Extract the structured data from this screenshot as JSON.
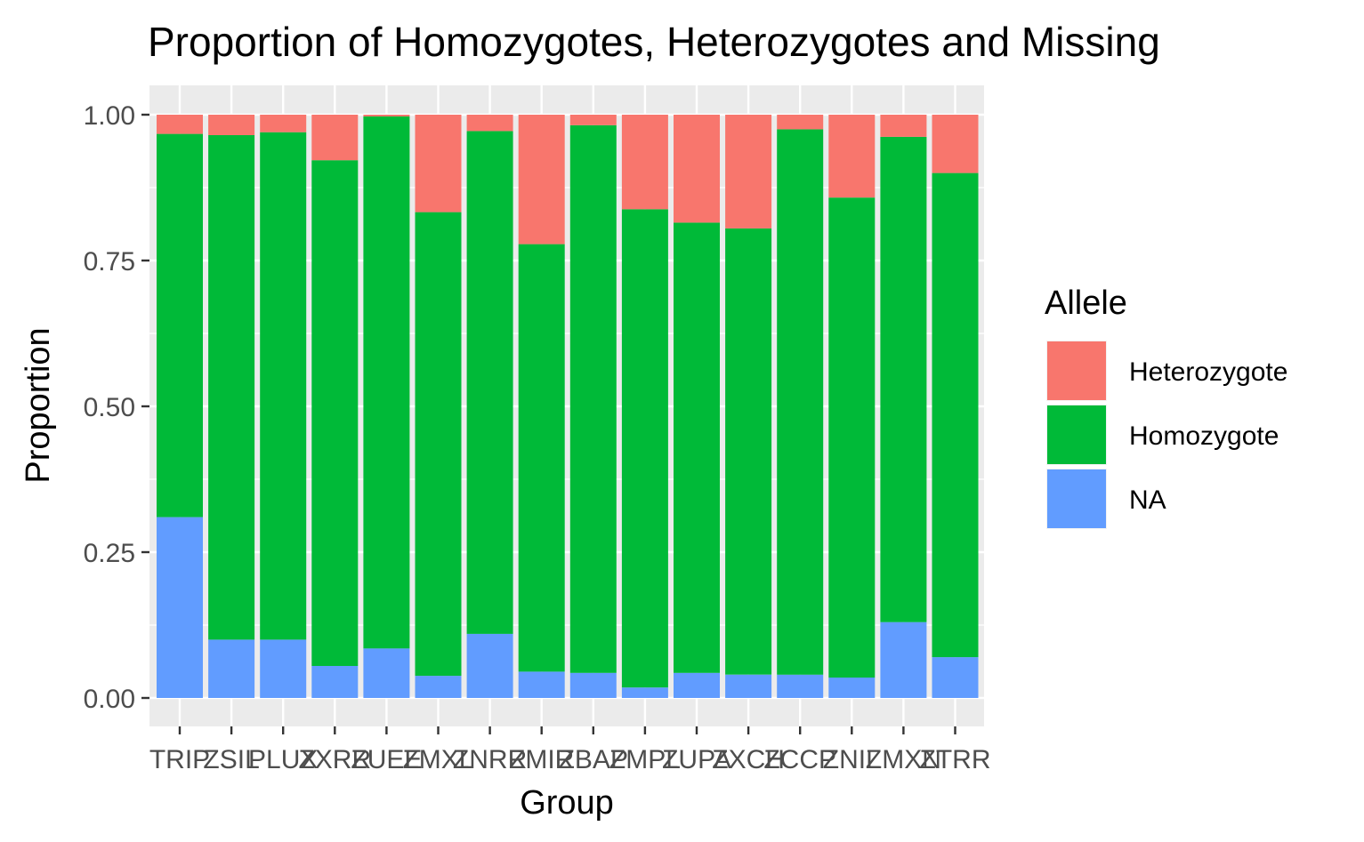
{
  "chart_data": {
    "type": "bar",
    "stacked": true,
    "title": "Proportion of Homozygotes, Heterozygotes and Missing",
    "xlabel": "Group",
    "ylabel": "Proportion",
    "ylim": [
      0,
      1
    ],
    "yticks": [
      "0.00",
      "0.25",
      "0.50",
      "0.75",
      "1.00"
    ],
    "categories": [
      "TRIP",
      "ZSIL",
      "PLUX",
      "ZXRR",
      "ZUEE",
      "ZMXL",
      "ZNRR",
      "ZMIR",
      "ZBAP",
      "ZMPL",
      "ZUPA",
      "ZXCH",
      "ZCCP",
      "ZNIL",
      "ZMXN",
      "ZTRR"
    ],
    "legend": {
      "title": "Allele",
      "placement": "right",
      "items": [
        {
          "name": "Heterozygote",
          "color": "#F8766D"
        },
        {
          "name": "Homozygote",
          "color": "#00BA38"
        },
        {
          "name": "NA",
          "color": "#619CFF"
        }
      ]
    },
    "series": [
      {
        "name": "NA",
        "color": "#619CFF",
        "values": [
          0.31,
          0.1,
          0.1,
          0.055,
          0.085,
          0.038,
          0.11,
          0.045,
          0.043,
          0.018,
          0.043,
          0.04,
          0.04,
          0.035,
          0.13,
          0.07
        ]
      },
      {
        "name": "Homozygote",
        "color": "#00BA38",
        "values": [
          0.657,
          0.865,
          0.87,
          0.867,
          0.912,
          0.795,
          0.862,
          0.733,
          0.939,
          0.82,
          0.772,
          0.765,
          0.935,
          0.823,
          0.832,
          0.83
        ]
      },
      {
        "name": "Heterozygote",
        "color": "#F8766D",
        "values": [
          0.033,
          0.035,
          0.03,
          0.078,
          0.003,
          0.167,
          0.028,
          0.222,
          0.018,
          0.162,
          0.185,
          0.195,
          0.025,
          0.142,
          0.038,
          0.1
        ]
      }
    ]
  }
}
